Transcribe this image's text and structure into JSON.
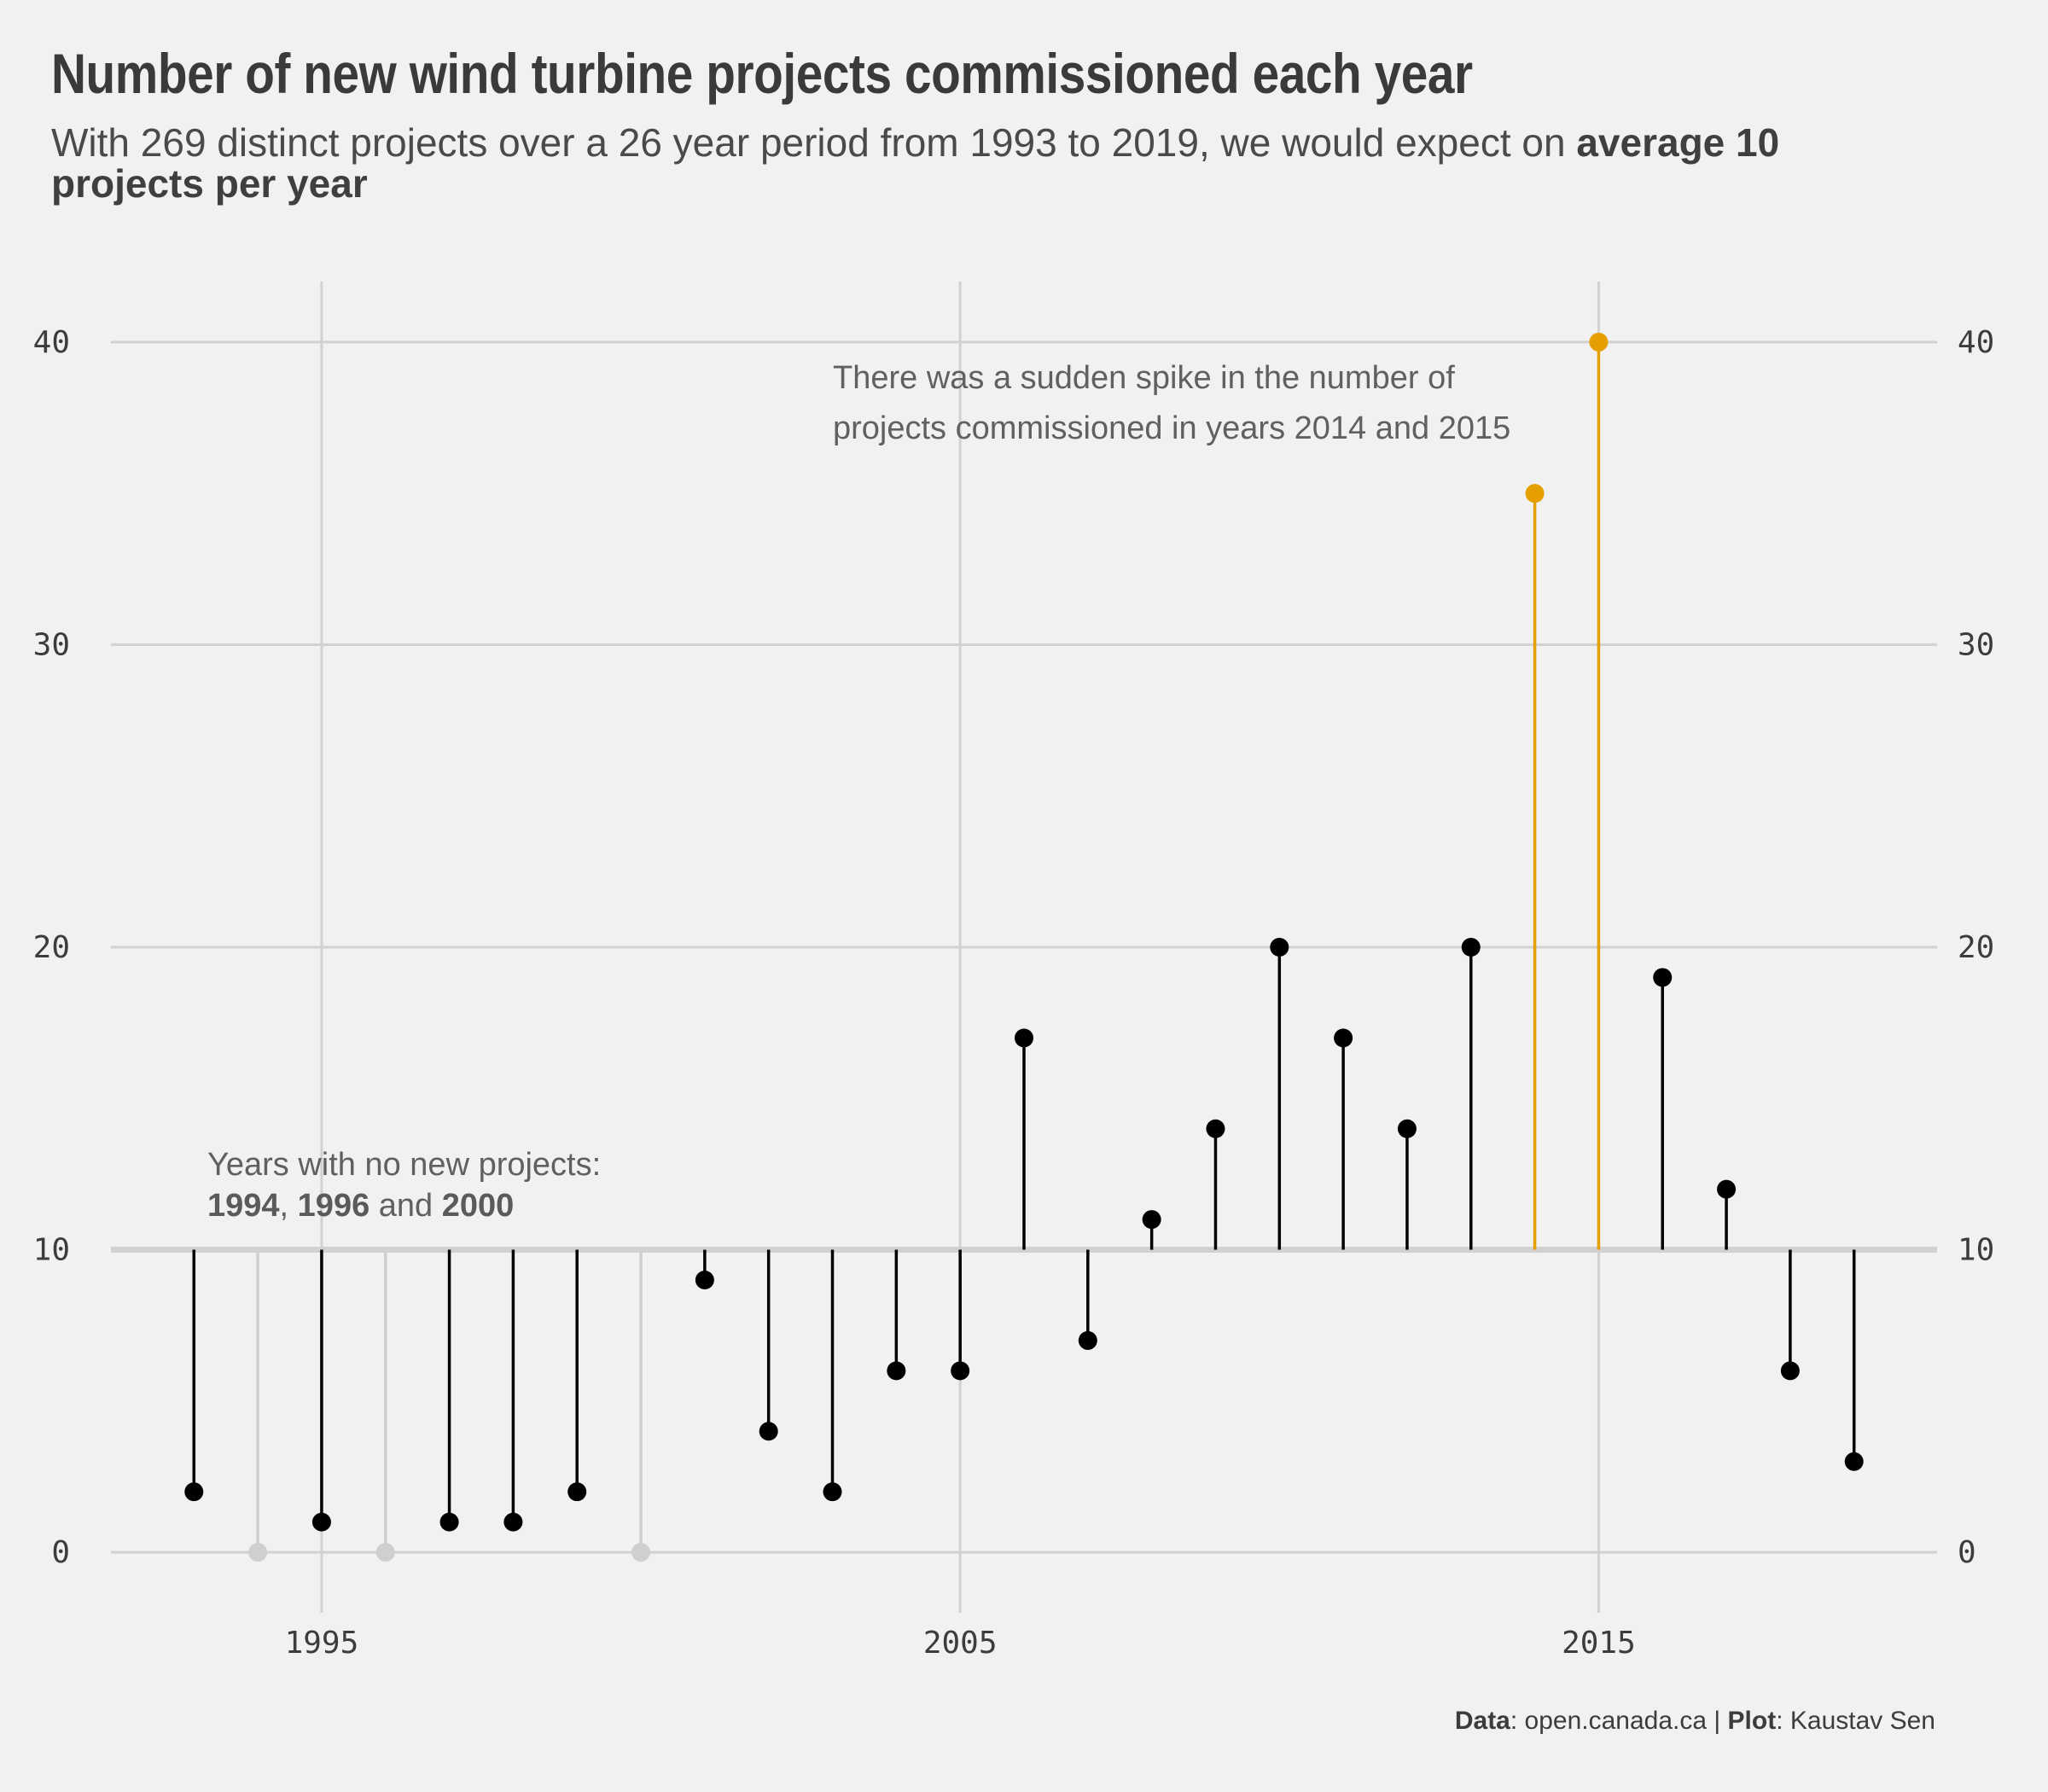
{
  "title": "Number of new wind turbine projects commissioned each year",
  "subtitle_part1": "With 269 distinct projects over a 26 year period from 1993 to 2019, we would expect on ",
  "subtitle_bold": "average 10 projects per year",
  "caption": {
    "data_label": "Data",
    "data_value": ": open.canada.ca | ",
    "plot_label": "Plot",
    "plot_value": ": Kaustav Sen"
  },
  "colors": {
    "background": "#f1f1f1",
    "grid": "#d1d1d1",
    "stem": "#000000",
    "zero_year": "#cfcfcf",
    "highlight": "#e69f00"
  },
  "annotations": {
    "spike_line1": "There was a sudden spike in the number of",
    "spike_line2": "projects commissioned in years 2014 and 2015",
    "none_line1": "Years with no new projects:",
    "none_y1": "1994",
    "none_sep1": ", ",
    "none_y2": "1996",
    "none_sep2": " and ",
    "none_y3": "2000"
  },
  "chart_data": {
    "type": "lollipop",
    "baseline": 10,
    "xlim": [
      1991.7,
      2020.3
    ],
    "ylim": [
      -2,
      42
    ],
    "x_ticks": [
      1995,
      2005,
      2015
    ],
    "y_ticks": [
      0,
      10,
      20,
      30,
      40
    ],
    "y_axis_both_sides": true,
    "grid": true,
    "highlight_years": [
      2014,
      2015
    ],
    "x": [
      1993,
      1994,
      1995,
      1996,
      1997,
      1998,
      1999,
      2000,
      2001,
      2002,
      2003,
      2004,
      2005,
      2006,
      2007,
      2008,
      2009,
      2010,
      2011,
      2012,
      2013,
      2014,
      2015,
      2016,
      2017,
      2018,
      2019
    ],
    "values": [
      2,
      0,
      1,
      0,
      1,
      1,
      2,
      0,
      9,
      4,
      2,
      6,
      6,
      17,
      7,
      11,
      14,
      20,
      17,
      14,
      20,
      35,
      40,
      19,
      12,
      6,
      3
    ]
  }
}
